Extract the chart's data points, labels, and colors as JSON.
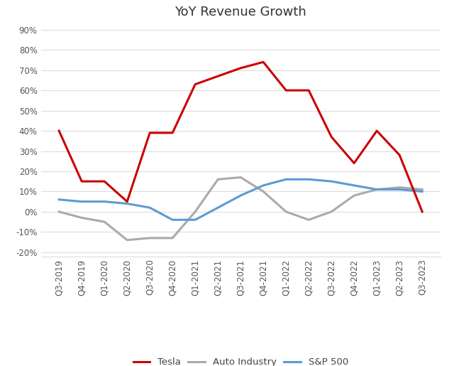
{
  "title": "YoY Revenue Growth",
  "categories": [
    "Q3-2019",
    "Q4-2019",
    "Q1-2020",
    "Q2-2020",
    "Q3-2020",
    "Q4-2020",
    "Q1-2021",
    "Q2-2021",
    "Q3-2021",
    "Q4-2021",
    "Q1-2022",
    "Q2-2022",
    "Q3-2022",
    "Q4-2022",
    "Q1-2023",
    "Q2-2023",
    "Q3-2023"
  ],
  "tesla": [
    0.4,
    0.15,
    0.15,
    0.05,
    0.39,
    0.39,
    0.63,
    0.67,
    0.71,
    0.74,
    0.6,
    0.6,
    0.37,
    0.24,
    0.4,
    0.28,
    0.0
  ],
  "auto_industry": [
    0.0,
    -0.03,
    -0.05,
    -0.14,
    -0.13,
    -0.13,
    0.0,
    0.16,
    0.17,
    0.1,
    0.0,
    -0.04,
    0.0,
    0.08,
    0.11,
    0.12,
    0.11
  ],
  "sp500": [
    0.06,
    0.05,
    0.05,
    0.04,
    0.02,
    -0.04,
    -0.04,
    0.02,
    0.08,
    0.13,
    0.16,
    0.16,
    0.15,
    0.13,
    0.11,
    0.11,
    0.1
  ],
  "tesla_color": "#CC0000",
  "auto_color": "#AAAAAA",
  "sp500_color": "#5B9BD5",
  "ylim_min": -0.22,
  "ylim_max": 0.92,
  "yticks": [
    -0.2,
    -0.1,
    0.0,
    0.1,
    0.2,
    0.3,
    0.4,
    0.5,
    0.6,
    0.7,
    0.8,
    0.9
  ],
  "grid_color": "#DDDDDD",
  "background_color": "#FFFFFF",
  "title_fontsize": 13,
  "legend_labels": [
    "Tesla",
    "Auto Industry",
    "S&P 500"
  ]
}
